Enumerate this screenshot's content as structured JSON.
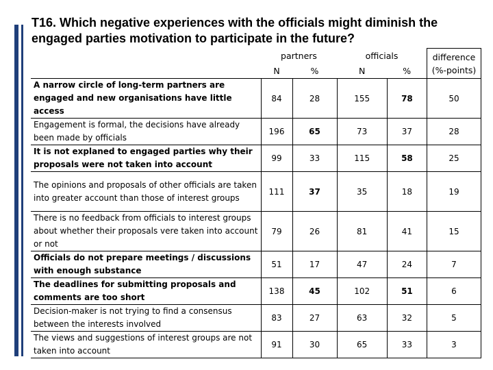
{
  "header": {
    "title": "T16. Which negative experiences with the officials might diminish the engaged parties motivation to participate in the future?"
  },
  "table": {
    "groups": [
      "partners",
      "officials",
      "difference (%-points)"
    ],
    "columns": [
      "N",
      "%",
      "N",
      "%"
    ],
    "rows": [
      [
        "A narrow circle of long-term partners are engaged and new organisations have little access",
        84,
        28,
        155,
        78,
        50
      ],
      [
        "Engagement is formal, the decisions have already been made by officials",
        196,
        65,
        73,
        37,
        28
      ],
      [
        "It is not explaned to engaged parties why their proposals were not taken into account",
        99,
        33,
        115,
        58,
        25
      ],
      [
        "The opinions and proposals of other officials are taken into greater account than those of interest groups",
        111,
        37,
        35,
        18,
        19
      ],
      [
        "There is no feedback from officials to interest groups about whether their proposals vere taken into account or not",
        79,
        26,
        81,
        41,
        15
      ],
      [
        "Officials do not prepare meetings / discussions with enough substance",
        51,
        17,
        47,
        24,
        7
      ],
      [
        "The deadlines for submitting proposals and comments are too short",
        138,
        45,
        102,
        51,
        6
      ],
      [
        "Decision-maker is not trying to find a consensus between the interests involved",
        83,
        27,
        63,
        32,
        5
      ],
      [
        "The views and suggestions of interest groups are not taken into account",
        91,
        30,
        65,
        33,
        3
      ]
    ]
  }
}
